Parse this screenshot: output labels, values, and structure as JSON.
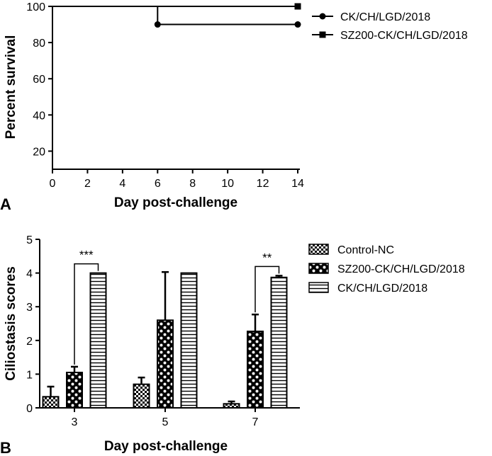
{
  "panel_labels": {
    "a": "A",
    "b": "B"
  },
  "chart_data": [
    {
      "type": "line",
      "subtype": "survival-step",
      "xlabel": "Day post-challenge",
      "ylabel": "Percent survival",
      "xlim": [
        0,
        14
      ],
      "ylim": [
        10,
        100
      ],
      "xticks": [
        0,
        2,
        4,
        6,
        8,
        10,
        12,
        14
      ],
      "yticks": [
        20,
        40,
        60,
        80,
        100
      ],
      "grid": false,
      "legend_position": "top-right",
      "series": [
        {
          "name": "CK/CH/LGD/2018",
          "marker": "circle",
          "points": [
            [
              0,
              100
            ],
            [
              6,
              100
            ],
            [
              6,
              90
            ],
            [
              14,
              90
            ]
          ],
          "markers_at": [
            [
              6,
              90
            ],
            [
              14,
              90
            ]
          ]
        },
        {
          "name": "SZ200-CK/CH/LGD/2018",
          "marker": "square",
          "points": [
            [
              0,
              100
            ],
            [
              14,
              100
            ]
          ],
          "markers_at": [
            [
              14,
              100
            ]
          ]
        }
      ]
    },
    {
      "type": "bar",
      "xlabel": "Day post-challenge",
      "ylabel": "Ciliostasis scores",
      "categories": [
        "3",
        "5",
        "7"
      ],
      "ylim": [
        0,
        5
      ],
      "yticks": [
        0,
        1,
        2,
        3,
        4,
        5
      ],
      "grid": false,
      "legend_position": "top-right",
      "series": [
        {
          "name": "Control-NC",
          "pattern": "fine-check",
          "values": [
            0.33,
            0.7,
            0.12
          ],
          "errors": [
            0.3,
            0.2,
            0.07
          ]
        },
        {
          "name": "SZ200-CK/CH/LGD/2018",
          "pattern": "coarse-check",
          "values": [
            1.05,
            2.6,
            2.27
          ],
          "errors": [
            0.17,
            1.43,
            0.5
          ]
        },
        {
          "name": "CK/CH/LGD/2018",
          "pattern": "horizontal-lines",
          "values": [
            4.0,
            4.0,
            3.87
          ],
          "errors": [
            0.0,
            0.0,
            0.05
          ]
        }
      ],
      "annotations": [
        {
          "category": "3",
          "between": [
            "SZ200-CK/CH/LGD/2018",
            "CK/CH/LGD/2018"
          ],
          "text": "***"
        },
        {
          "category": "7",
          "between": [
            "SZ200-CK/CH/LGD/2018",
            "CK/CH/LGD/2018"
          ],
          "text": "**"
        }
      ]
    }
  ]
}
